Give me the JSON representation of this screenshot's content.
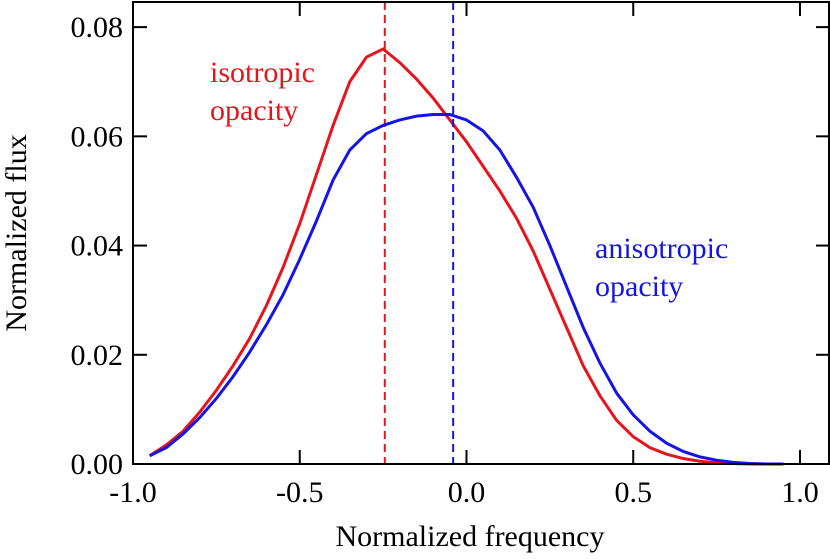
{
  "chart_data": {
    "type": "line",
    "x_label": "Normalized frequency",
    "y_label": "Normalized flux",
    "x": [
      -0.95,
      -0.9,
      -0.85,
      -0.8,
      -0.75,
      -0.7,
      -0.65,
      -0.6,
      -0.55,
      -0.5,
      -0.45,
      -0.4,
      -0.35,
      -0.3,
      -0.25,
      -0.2,
      -0.15,
      -0.1,
      -0.05,
      0.0,
      0.05,
      0.1,
      0.15,
      0.2,
      0.25,
      0.3,
      0.35,
      0.4,
      0.45,
      0.5,
      0.55,
      0.6,
      0.65,
      0.7,
      0.75,
      0.8,
      0.85,
      0.9,
      0.95
    ],
    "series": [
      {
        "name": "isotropic opacity",
        "color": "#e8141c",
        "values": [
          0.0015,
          0.0035,
          0.006,
          0.0095,
          0.0135,
          0.018,
          0.023,
          0.029,
          0.036,
          0.044,
          0.053,
          0.062,
          0.07,
          0.0745,
          0.076,
          0.0735,
          0.0705,
          0.067,
          0.063,
          0.059,
          0.0545,
          0.05,
          0.045,
          0.039,
          0.032,
          0.025,
          0.018,
          0.0125,
          0.008,
          0.005,
          0.003,
          0.0018,
          0.001,
          0.0005,
          0.0002,
          0.0001,
          0.0,
          0.0,
          0.0
        ],
        "marker_x": -0.245
      },
      {
        "name": "anisotropic opacity",
        "color": "#1414e6",
        "values": [
          0.0015,
          0.003,
          0.0055,
          0.0085,
          0.012,
          0.016,
          0.0205,
          0.0255,
          0.031,
          0.0375,
          0.0445,
          0.052,
          0.0575,
          0.0605,
          0.062,
          0.063,
          0.0637,
          0.064,
          0.064,
          0.063,
          0.061,
          0.0575,
          0.0525,
          0.047,
          0.04,
          0.0325,
          0.025,
          0.0185,
          0.013,
          0.009,
          0.006,
          0.0038,
          0.0023,
          0.0013,
          0.0007,
          0.0003,
          0.0001,
          0.0,
          0.0
        ],
        "marker_x": -0.04
      }
    ],
    "annotations": [
      {
        "lines": [
          "isotropic",
          "opacity"
        ],
        "color": "#e8141c"
      },
      {
        "lines": [
          "anisotropic",
          "opacity"
        ],
        "color": "#1414e6"
      }
    ],
    "xlim": [
      -1.0,
      1.09
    ],
    "ylim": [
      0,
      0.0846
    ],
    "xticks": [
      {
        "value": -1,
        "label": "-1.0"
      },
      {
        "value": -0.5,
        "label": "-0.5"
      },
      {
        "value": 0,
        "label": "0.0"
      },
      {
        "value": 0.5,
        "label": "0.5"
      },
      {
        "value": 1,
        "label": "1.0"
      }
    ],
    "yticks": [
      {
        "value": 0,
        "label": "0.00"
      },
      {
        "value": 0.02,
        "label": "0.02"
      },
      {
        "value": 0.04,
        "label": "0.04"
      },
      {
        "value": 0.06,
        "label": "0.06"
      },
      {
        "value": 0.08,
        "label": "0.08"
      }
    ]
  }
}
